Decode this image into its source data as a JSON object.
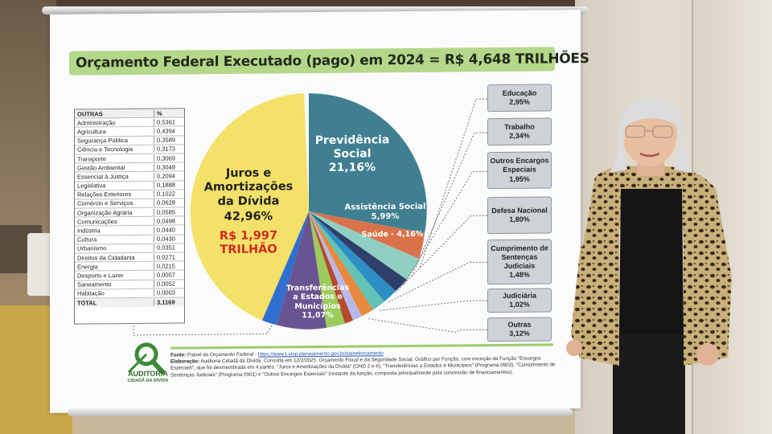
{
  "banner": {
    "title": "Orçamento Federal Executado (pago) em 2024 = R$ 4,648 TRILHÕES"
  },
  "table": {
    "header": [
      "OUTRAS",
      "%"
    ],
    "rows": [
      [
        "Administração",
        "0,5361"
      ],
      [
        "Agricultura",
        "0,4394"
      ],
      [
        "Segurança Pública",
        "0,3589"
      ],
      [
        "Ciência e Tecnologia",
        "0,3173"
      ],
      [
        "Transporte",
        "0,3069"
      ],
      [
        "Gestão Ambiental",
        "0,3049"
      ],
      [
        "Essencial à Justiça",
        "0,2094"
      ],
      [
        "Legislativa",
        "0,1888"
      ],
      [
        "Relações Exteriores",
        "0,1022"
      ],
      [
        "Comércio e Serviços",
        "0,0628"
      ],
      [
        "Organização Agrária",
        "0,0585"
      ],
      [
        "Comunicações",
        "0,0498"
      ],
      [
        "Indústria",
        "0,0440"
      ],
      [
        "Cultura",
        "0,0430"
      ],
      [
        "Urbanismo",
        "0,0351"
      ],
      [
        "Direitos da Cidadania",
        "0,0271"
      ],
      [
        "Energia",
        "0,0215"
      ],
      [
        "Desporto e Lazer",
        "0,0057"
      ],
      [
        "Saneamento",
        "0,0052"
      ],
      [
        "Habitação",
        "0,0003"
      ],
      [
        "TOTAL",
        "3,1169"
      ]
    ]
  },
  "pie": {
    "juros_l1": "Juros e",
    "juros_l2": "Amortizações",
    "juros_l3": "da Dívida",
    "juros_pct": "42,96%",
    "juros_value_l1": "R$ 1,997",
    "juros_value_l2": "TRILHÃO",
    "prev_l1": "Previdência",
    "prev_l2": "Social",
    "prev_pct": "21,16%",
    "assist_l1": "Assistência Social",
    "assist_pct": "5,99%",
    "saude": "Saúde - 4,16%",
    "transf_l1": "Transferências",
    "transf_l2": "a Estados e",
    "transf_l3": "Municípios",
    "transf_pct": "11,07%"
  },
  "func_boxes": [
    {
      "label": "Educação",
      "pct": "2,95%"
    },
    {
      "label": "Trabalho",
      "pct": "2,34%"
    },
    {
      "label": "Outros Encargos Especiais",
      "pct": "1,95%"
    },
    {
      "label": "Defesa Nacional",
      "pct": "1,80%"
    },
    {
      "label": "Cumprimento de Sentenças Judiciais",
      "pct": "1,48%"
    },
    {
      "label": "Judiciária",
      "pct": "1,02%"
    },
    {
      "label": "Outras",
      "pct": "3,12%"
    }
  ],
  "footer": {
    "source_label": "Fonte:",
    "source_text": "Painel do Orçamento Federal -",
    "source_url": "https://www1.siop.planejamento.gov.br/painelorcamento",
    "elab_label": "Elaboração:",
    "elab_text": "Auditoria Cidadã da Dívida. Consulta em 12/2/2025. Orçamento Fiscal e da Seguridade Social. Gráfico por Função, com exceção da Função \"Encargos Especiais\", que foi desmembrada em 4 partes: \"Juros e Amortizações da Dívida\" (GND 2 e 6); \"Transferências a Estados e Municípios\" (Programa 0903), \"Cumprimento de Sentenças Judiciais\" (Programa 0901) e \"Outros Encargos Especiais\" (restante da função, composta principalmente pela concessão de financiamentos)."
  },
  "logo": {
    "name": "AUDITORIA",
    "sub": "CIDADÃ DA DÍVIDA"
  },
  "colors": {
    "juros": "#f3e169",
    "previdencia": "#3f7f91",
    "assistencia": "#d9734c",
    "saude": "#8fd0c3",
    "transferencias": "#6a5391",
    "title_bar": "#b5d78a"
  }
}
